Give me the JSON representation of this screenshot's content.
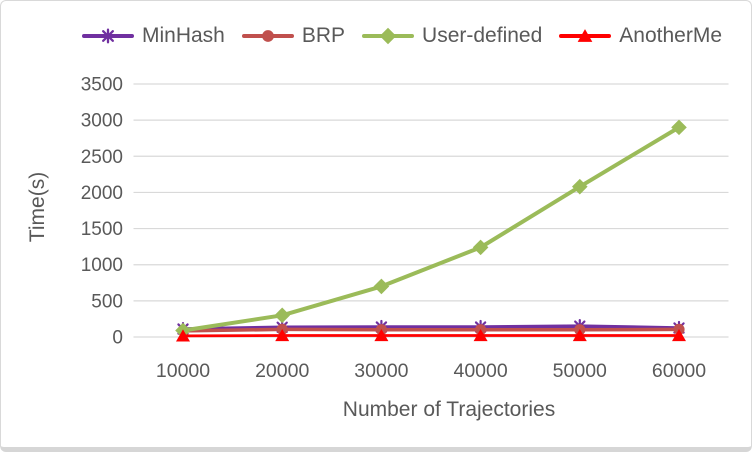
{
  "chart_data": {
    "type": "line",
    "title": "",
    "xlabel": "Number of Trajectories",
    "ylabel": "Time(s)",
    "categories": [
      "10000",
      "20000",
      "30000",
      "40000",
      "50000",
      "60000"
    ],
    "yticks": [
      0,
      500,
      1000,
      1500,
      2000,
      2500,
      3000,
      3500
    ],
    "ylim": [
      0,
      3500
    ],
    "grid": true,
    "legend_position": "top",
    "text_color": "#595959",
    "grid_color": "#D9D9D9",
    "frame_border_color": "#D9D9D9",
    "series": [
      {
        "name": "MinHash",
        "color": "#7030A0",
        "marker": "asterisk",
        "values": [
          110,
          135,
          138,
          138,
          150,
          125
        ]
      },
      {
        "name": "BRP",
        "color": "#C0504D",
        "marker": "circle",
        "values": [
          85,
          105,
          100,
          100,
          100,
          105
        ]
      },
      {
        "name": "User-defined",
        "color": "#9BBB59",
        "marker": "diamond",
        "values": [
          90,
          300,
          700,
          1240,
          2080,
          2900
        ]
      },
      {
        "name": "AnotherMe",
        "color": "#FF0000",
        "marker": "triangle",
        "values": [
          15,
          20,
          20,
          20,
          20,
          20
        ]
      }
    ]
  }
}
